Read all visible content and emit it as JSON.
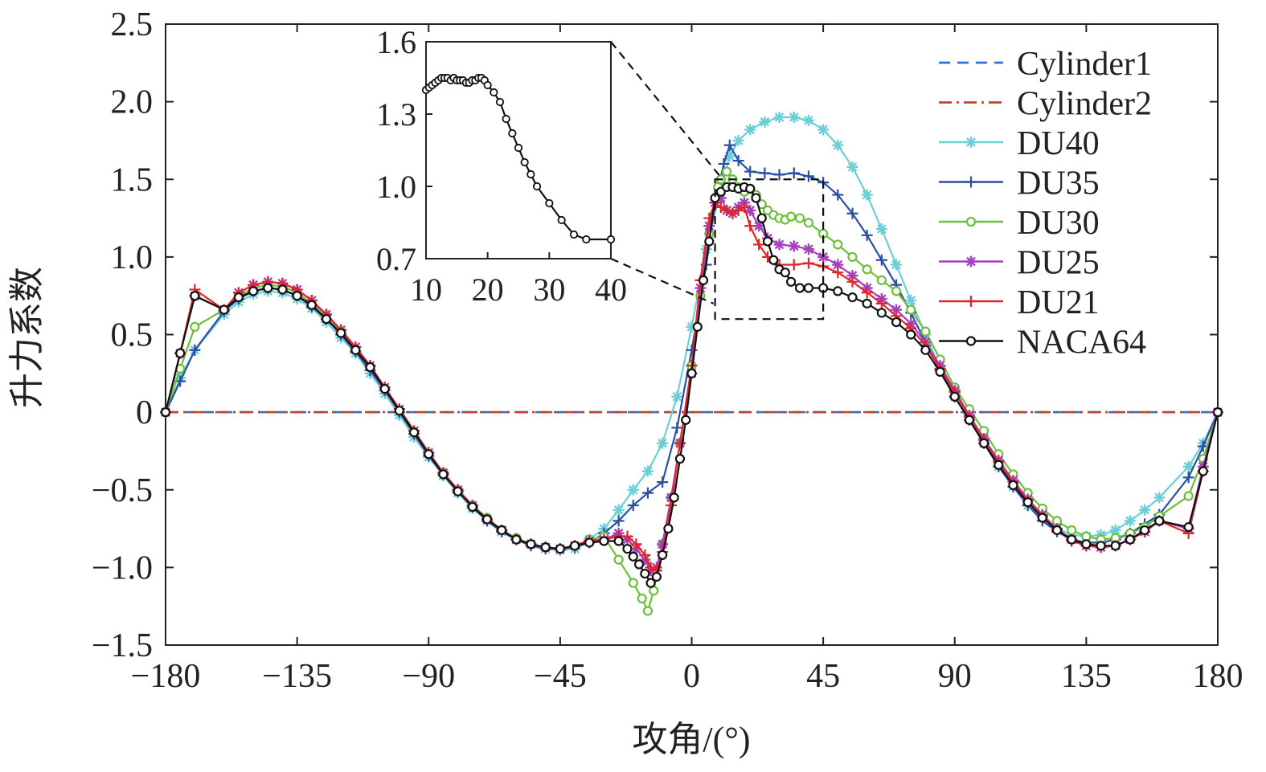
{
  "chart_data": {
    "type": "line",
    "title": "",
    "xlabel": "攻角/(°)",
    "ylabel": "升力系数",
    "xlim": [
      -180,
      180
    ],
    "ylim": [
      -1.5,
      2.5
    ],
    "xticks": [
      -180,
      -135,
      -90,
      -45,
      0,
      45,
      90,
      135,
      180
    ],
    "xtick_labels": [
      "−180",
      "−135",
      "−90",
      "−45",
      "0",
      "45",
      "90",
      "135",
      "180"
    ],
    "yticks": [
      -1.5,
      -1.0,
      -0.5,
      0,
      0.5,
      1.0,
      1.5,
      2.0,
      2.5
    ],
    "ytick_labels": [
      "−1.5",
      "−1.0",
      "−0.5",
      "0",
      "0.5",
      "1.0",
      "1.5",
      "2.0",
      "2.5"
    ],
    "legend_position": "top-right",
    "series": [
      {
        "name": "Cylinder1",
        "color": "#2f6fd8",
        "dash": "dash",
        "marker": "none",
        "x": [
          -180,
          180
        ],
        "y": [
          0,
          0
        ]
      },
      {
        "name": "Cylinder2",
        "color": "#c0452a",
        "dash": "dashdot",
        "marker": "none",
        "x": [
          -180,
          180
        ],
        "y": [
          0,
          0
        ]
      },
      {
        "name": "DU40",
        "color": "#6ccfd6",
        "dash": "solid",
        "marker": "star",
        "x": [
          -180,
          -175,
          -170,
          -160,
          -155,
          -150,
          -145,
          -140,
          -135,
          -130,
          -125,
          -120,
          -115,
          -110,
          -105,
          -100,
          -95,
          -90,
          -85,
          -80,
          -75,
          -70,
          -65,
          -60,
          -55,
          -50,
          -45,
          -40,
          -35,
          -30,
          -25,
          -20,
          -15,
          -10,
          -5,
          0,
          5,
          10,
          13,
          16,
          20,
          25,
          30,
          35,
          40,
          45,
          50,
          55,
          60,
          65,
          70,
          75,
          80,
          85,
          90,
          95,
          100,
          105,
          110,
          115,
          120,
          125,
          130,
          135,
          140,
          145,
          150,
          155,
          160,
          170,
          175,
          180
        ],
        "y": [
          0,
          0.22,
          0.4,
          0.63,
          0.71,
          0.76,
          0.78,
          0.77,
          0.73,
          0.67,
          0.58,
          0.48,
          0.38,
          0.25,
          0.12,
          -0.02,
          -0.16,
          -0.29,
          -0.41,
          -0.52,
          -0.62,
          -0.7,
          -0.77,
          -0.82,
          -0.85,
          -0.88,
          -0.89,
          -0.88,
          -0.82,
          -0.75,
          -0.63,
          -0.5,
          -0.38,
          -0.2,
          0.1,
          0.55,
          1.05,
          1.45,
          1.65,
          1.75,
          1.82,
          1.87,
          1.9,
          1.9,
          1.88,
          1.82,
          1.72,
          1.58,
          1.4,
          1.18,
          0.95,
          0.72,
          0.5,
          0.28,
          0.1,
          -0.05,
          -0.2,
          -0.35,
          -0.48,
          -0.6,
          -0.68,
          -0.75,
          -0.79,
          -0.8,
          -0.79,
          -0.76,
          -0.7,
          -0.63,
          -0.55,
          -0.35,
          -0.2,
          0
        ]
      },
      {
        "name": "DU35",
        "color": "#2a4fa6",
        "dash": "solid",
        "marker": "plus",
        "x": [
          -180,
          -175,
          -170,
          -160,
          -155,
          -150,
          -145,
          -140,
          -135,
          -130,
          -125,
          -120,
          -115,
          -110,
          -105,
          -100,
          -95,
          -90,
          -85,
          -80,
          -75,
          -70,
          -65,
          -60,
          -55,
          -50,
          -45,
          -40,
          -35,
          -30,
          -25,
          -20,
          -15,
          -10,
          -5,
          0,
          5,
          8,
          11,
          13,
          16,
          20,
          25,
          30,
          35,
          40,
          45,
          50,
          55,
          60,
          65,
          70,
          75,
          80,
          85,
          90,
          95,
          100,
          105,
          110,
          115,
          120,
          125,
          130,
          135,
          140,
          145,
          150,
          155,
          160,
          170,
          175,
          180
        ],
        "y": [
          0,
          0.2,
          0.4,
          0.65,
          0.73,
          0.78,
          0.8,
          0.79,
          0.75,
          0.68,
          0.6,
          0.5,
          0.39,
          0.27,
          0.14,
          0.0,
          -0.14,
          -0.28,
          -0.4,
          -0.51,
          -0.61,
          -0.7,
          -0.77,
          -0.82,
          -0.86,
          -0.88,
          -0.88,
          -0.87,
          -0.84,
          -0.78,
          -0.7,
          -0.6,
          -0.52,
          -0.45,
          -0.1,
          0.4,
          0.95,
          1.35,
          1.6,
          1.72,
          1.62,
          1.55,
          1.54,
          1.53,
          1.54,
          1.52,
          1.48,
          1.4,
          1.28,
          1.14,
          0.98,
          0.82,
          0.64,
          0.45,
          0.27,
          0.1,
          -0.05,
          -0.2,
          -0.35,
          -0.48,
          -0.6,
          -0.7,
          -0.77,
          -0.82,
          -0.84,
          -0.84,
          -0.82,
          -0.78,
          -0.72,
          -0.66,
          -0.42,
          -0.22,
          0
        ]
      },
      {
        "name": "DU30",
        "color": "#6cbf3a",
        "dash": "solid",
        "marker": "circle",
        "x": [
          -180,
          -175,
          -170,
          -160,
          -155,
          -150,
          -145,
          -140,
          -135,
          -130,
          -125,
          -120,
          -115,
          -110,
          -105,
          -100,
          -95,
          -90,
          -85,
          -80,
          -75,
          -70,
          -65,
          -60,
          -55,
          -50,
          -45,
          -40,
          -35,
          -30,
          -25,
          -20,
          -17,
          -15,
          -13,
          -10,
          -7,
          -4,
          0,
          3,
          6,
          9,
          10,
          12,
          14,
          16,
          18,
          20,
          22,
          24,
          26,
          28,
          30,
          32,
          34,
          37,
          40,
          45,
          50,
          55,
          60,
          65,
          70,
          75,
          80,
          85,
          90,
          95,
          100,
          105,
          110,
          115,
          120,
          125,
          130,
          135,
          140,
          145,
          150,
          155,
          160,
          170,
          175,
          180
        ],
        "y": [
          0,
          0.28,
          0.55,
          0.66,
          0.75,
          0.8,
          0.82,
          0.81,
          0.77,
          0.7,
          0.62,
          0.52,
          0.41,
          0.29,
          0.15,
          0.01,
          -0.13,
          -0.27,
          -0.39,
          -0.5,
          -0.6,
          -0.68,
          -0.76,
          -0.81,
          -0.85,
          -0.87,
          -0.88,
          -0.86,
          -0.82,
          -0.8,
          -0.95,
          -1.1,
          -1.2,
          -1.28,
          -1.15,
          -0.85,
          -0.55,
          -0.2,
          0.3,
          0.75,
          1.15,
          1.45,
          1.5,
          1.55,
          1.5,
          1.45,
          1.42,
          1.44,
          1.4,
          1.34,
          1.3,
          1.27,
          1.25,
          1.24,
          1.26,
          1.25,
          1.22,
          1.15,
          1.08,
          1.0,
          0.92,
          0.85,
          0.78,
          0.66,
          0.52,
          0.34,
          0.16,
          0.02,
          -0.12,
          -0.27,
          -0.4,
          -0.52,
          -0.62,
          -0.7,
          -0.76,
          -0.8,
          -0.82,
          -0.81,
          -0.78,
          -0.74,
          -0.67,
          -0.54,
          -0.3,
          0
        ]
      },
      {
        "name": "DU25",
        "color": "#a83fbf",
        "dash": "solid",
        "marker": "star",
        "x": [
          -180,
          -175,
          -170,
          -160,
          -155,
          -150,
          -145,
          -140,
          -135,
          -130,
          -125,
          -120,
          -115,
          -110,
          -105,
          -100,
          -95,
          -90,
          -85,
          -80,
          -75,
          -70,
          -65,
          -60,
          -55,
          -50,
          -45,
          -40,
          -35,
          -30,
          -25,
          -22,
          -19,
          -16,
          -14,
          -12,
          -10,
          -7,
          -4,
          0,
          3,
          6,
          8,
          10,
          12,
          14,
          16,
          18,
          20,
          23,
          26,
          30,
          35,
          40,
          45,
          50,
          55,
          60,
          65,
          70,
          75,
          80,
          85,
          90,
          95,
          100,
          105,
          110,
          115,
          120,
          125,
          130,
          135,
          140,
          145,
          150,
          155,
          160,
          170,
          175,
          180
        ],
        "y": [
          0,
          0.38,
          0.75,
          0.66,
          0.77,
          0.82,
          0.84,
          0.83,
          0.79,
          0.72,
          0.63,
          0.53,
          0.42,
          0.3,
          0.16,
          0.02,
          -0.12,
          -0.26,
          -0.39,
          -0.5,
          -0.6,
          -0.69,
          -0.76,
          -0.82,
          -0.85,
          -0.87,
          -0.88,
          -0.86,
          -0.83,
          -0.82,
          -0.78,
          -0.82,
          -0.88,
          -0.95,
          -1.02,
          -1.0,
          -0.85,
          -0.55,
          -0.2,
          0.25,
          0.8,
          1.2,
          1.35,
          1.38,
          1.3,
          1.28,
          1.32,
          1.35,
          1.3,
          1.2,
          1.12,
          1.08,
          1.07,
          1.05,
          1.0,
          0.95,
          0.88,
          0.8,
          0.73,
          0.66,
          0.57,
          0.45,
          0.3,
          0.14,
          -0.02,
          -0.17,
          -0.31,
          -0.44,
          -0.56,
          -0.66,
          -0.75,
          -0.82,
          -0.86,
          -0.87,
          -0.86,
          -0.82,
          -0.77,
          -0.7,
          -0.75,
          -0.35,
          0
        ]
      },
      {
        "name": "DU21",
        "color": "#e0262a",
        "dash": "solid",
        "marker": "plus",
        "x": [
          -180,
          -175,
          -170,
          -160,
          -155,
          -150,
          -145,
          -140,
          -135,
          -130,
          -125,
          -120,
          -115,
          -110,
          -105,
          -100,
          -95,
          -90,
          -85,
          -80,
          -75,
          -70,
          -65,
          -60,
          -55,
          -50,
          -45,
          -40,
          -35,
          -30,
          -25,
          -22,
          -19,
          -16,
          -14,
          -12,
          -10,
          -7,
          -4,
          0,
          3,
          6,
          8,
          10,
          12,
          14,
          16,
          18,
          20,
          23,
          26,
          30,
          35,
          40,
          45,
          50,
          55,
          60,
          65,
          70,
          75,
          80,
          85,
          90,
          95,
          100,
          105,
          110,
          115,
          120,
          125,
          130,
          135,
          140,
          145,
          150,
          155,
          160,
          170,
          175,
          180
        ],
        "y": [
          0,
          0.38,
          0.79,
          0.66,
          0.77,
          0.82,
          0.84,
          0.83,
          0.79,
          0.72,
          0.63,
          0.53,
          0.42,
          0.3,
          0.16,
          0.02,
          -0.12,
          -0.26,
          -0.39,
          -0.5,
          -0.6,
          -0.69,
          -0.76,
          -0.82,
          -0.85,
          -0.87,
          -0.88,
          -0.86,
          -0.83,
          -0.82,
          -0.8,
          -0.8,
          -0.85,
          -0.92,
          -1.0,
          -1.02,
          -0.9,
          -0.6,
          -0.2,
          0.3,
          0.85,
          1.25,
          1.35,
          1.32,
          1.3,
          1.28,
          1.3,
          1.32,
          1.2,
          1.08,
          1.0,
          0.95,
          0.95,
          0.96,
          0.94,
          0.9,
          0.84,
          0.77,
          0.7,
          0.62,
          0.54,
          0.43,
          0.28,
          0.13,
          -0.03,
          -0.18,
          -0.32,
          -0.45,
          -0.57,
          -0.67,
          -0.76,
          -0.83,
          -0.86,
          -0.87,
          -0.86,
          -0.82,
          -0.77,
          -0.7,
          -0.78,
          -0.38,
          0
        ]
      },
      {
        "name": "NACA64",
        "color": "#111111",
        "dash": "solid",
        "marker": "circle",
        "x": [
          -180,
          -175,
          -170,
          -160,
          -155,
          -150,
          -145,
          -140,
          -135,
          -130,
          -125,
          -120,
          -115,
          -110,
          -105,
          -100,
          -95,
          -90,
          -85,
          -80,
          -75,
          -70,
          -65,
          -60,
          -55,
          -50,
          -45,
          -40,
          -35,
          -30,
          -25,
          -22,
          -20,
          -18,
          -16,
          -14,
          -12,
          -10,
          -8,
          -6,
          -4,
          -2,
          0,
          2,
          4,
          6,
          8,
          10,
          12,
          14,
          16,
          18,
          20,
          22,
          24,
          26,
          28,
          30,
          32,
          34,
          37,
          40,
          45,
          50,
          55,
          60,
          65,
          70,
          75,
          80,
          85,
          90,
          95,
          100,
          105,
          110,
          115,
          120,
          125,
          130,
          135,
          140,
          145,
          150,
          155,
          160,
          170,
          175,
          180
        ],
        "y": [
          0,
          0.38,
          0.75,
          0.66,
          0.74,
          0.78,
          0.8,
          0.79,
          0.75,
          0.69,
          0.6,
          0.51,
          0.4,
          0.29,
          0.15,
          0.01,
          -0.13,
          -0.27,
          -0.4,
          -0.51,
          -0.61,
          -0.69,
          -0.76,
          -0.82,
          -0.85,
          -0.87,
          -0.88,
          -0.86,
          -0.84,
          -0.83,
          -0.83,
          -0.88,
          -0.93,
          -0.98,
          -1.04,
          -1.1,
          -1.06,
          -0.92,
          -0.75,
          -0.55,
          -0.3,
          -0.05,
          0.25,
          0.55,
          0.85,
          1.1,
          1.38,
          1.42,
          1.45,
          1.45,
          1.44,
          1.45,
          1.44,
          1.38,
          1.25,
          1.1,
          0.98,
          0.92,
          0.9,
          0.84,
          0.8,
          0.8,
          0.8,
          0.78,
          0.74,
          0.7,
          0.64,
          0.58,
          0.5,
          0.4,
          0.26,
          0.1,
          -0.05,
          -0.2,
          -0.34,
          -0.47,
          -0.58,
          -0.68,
          -0.76,
          -0.82,
          -0.85,
          -0.86,
          -0.86,
          -0.82,
          -0.76,
          -0.7,
          -0.74,
          -0.38,
          0
        ]
      }
    ],
    "inset": {
      "xlim": [
        10,
        40
      ],
      "ylim": [
        0.7,
        1.6
      ],
      "xticks": [
        10,
        20,
        30,
        40
      ],
      "xtick_labels": [
        "10",
        "20",
        "30",
        "40"
      ],
      "yticks": [
        0.7,
        1.0,
        1.3,
        1.6
      ],
      "ytick_labels": [
        "0.7",
        "1.0",
        "1.3",
        "1.6"
      ],
      "series": "NACA64",
      "x": [
        10,
        10.5,
        11,
        11.5,
        12,
        12.5,
        13,
        13.5,
        14,
        14.5,
        15,
        15.5,
        16,
        16.5,
        17,
        17.5,
        18,
        18.5,
        19,
        19.5,
        20,
        21,
        22,
        23,
        24,
        25,
        26,
        27,
        28,
        30,
        32,
        34,
        36,
        40
      ],
      "y": [
        1.4,
        1.41,
        1.42,
        1.43,
        1.44,
        1.45,
        1.45,
        1.45,
        1.44,
        1.45,
        1.44,
        1.44,
        1.44,
        1.43,
        1.43,
        1.44,
        1.44,
        1.45,
        1.45,
        1.44,
        1.42,
        1.39,
        1.35,
        1.28,
        1.22,
        1.16,
        1.1,
        1.05,
        1.0,
        0.93,
        0.86,
        0.8,
        0.78,
        0.78
      ]
    }
  }
}
